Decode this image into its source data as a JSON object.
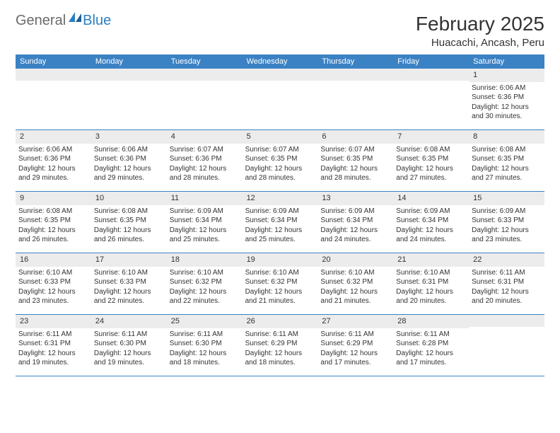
{
  "colors": {
    "header_bar": "#3b82c4",
    "day_band": "#ececec",
    "rule": "#3b82c4",
    "text": "#333333",
    "logo_gray": "#6a6a6a",
    "logo_blue": "#2a7fbf",
    "background": "#ffffff"
  },
  "logo": {
    "text_general": "General",
    "text_blue": "Blue"
  },
  "title": "February 2025",
  "location": "Huacachi, Ancash, Peru",
  "weekdays": [
    "Sunday",
    "Monday",
    "Tuesday",
    "Wednesday",
    "Thursday",
    "Friday",
    "Saturday"
  ],
  "weeks": [
    [
      {
        "day": "",
        "info": ""
      },
      {
        "day": "",
        "info": ""
      },
      {
        "day": "",
        "info": ""
      },
      {
        "day": "",
        "info": ""
      },
      {
        "day": "",
        "info": ""
      },
      {
        "day": "",
        "info": ""
      },
      {
        "day": "1",
        "info": "Sunrise: 6:06 AM\nSunset: 6:36 PM\nDaylight: 12 hours and 30 minutes."
      }
    ],
    [
      {
        "day": "2",
        "info": "Sunrise: 6:06 AM\nSunset: 6:36 PM\nDaylight: 12 hours and 29 minutes."
      },
      {
        "day": "3",
        "info": "Sunrise: 6:06 AM\nSunset: 6:36 PM\nDaylight: 12 hours and 29 minutes."
      },
      {
        "day": "4",
        "info": "Sunrise: 6:07 AM\nSunset: 6:36 PM\nDaylight: 12 hours and 28 minutes."
      },
      {
        "day": "5",
        "info": "Sunrise: 6:07 AM\nSunset: 6:35 PM\nDaylight: 12 hours and 28 minutes."
      },
      {
        "day": "6",
        "info": "Sunrise: 6:07 AM\nSunset: 6:35 PM\nDaylight: 12 hours and 28 minutes."
      },
      {
        "day": "7",
        "info": "Sunrise: 6:08 AM\nSunset: 6:35 PM\nDaylight: 12 hours and 27 minutes."
      },
      {
        "day": "8",
        "info": "Sunrise: 6:08 AM\nSunset: 6:35 PM\nDaylight: 12 hours and 27 minutes."
      }
    ],
    [
      {
        "day": "9",
        "info": "Sunrise: 6:08 AM\nSunset: 6:35 PM\nDaylight: 12 hours and 26 minutes."
      },
      {
        "day": "10",
        "info": "Sunrise: 6:08 AM\nSunset: 6:35 PM\nDaylight: 12 hours and 26 minutes."
      },
      {
        "day": "11",
        "info": "Sunrise: 6:09 AM\nSunset: 6:34 PM\nDaylight: 12 hours and 25 minutes."
      },
      {
        "day": "12",
        "info": "Sunrise: 6:09 AM\nSunset: 6:34 PM\nDaylight: 12 hours and 25 minutes."
      },
      {
        "day": "13",
        "info": "Sunrise: 6:09 AM\nSunset: 6:34 PM\nDaylight: 12 hours and 24 minutes."
      },
      {
        "day": "14",
        "info": "Sunrise: 6:09 AM\nSunset: 6:34 PM\nDaylight: 12 hours and 24 minutes."
      },
      {
        "day": "15",
        "info": "Sunrise: 6:09 AM\nSunset: 6:33 PM\nDaylight: 12 hours and 23 minutes."
      }
    ],
    [
      {
        "day": "16",
        "info": "Sunrise: 6:10 AM\nSunset: 6:33 PM\nDaylight: 12 hours and 23 minutes."
      },
      {
        "day": "17",
        "info": "Sunrise: 6:10 AM\nSunset: 6:33 PM\nDaylight: 12 hours and 22 minutes."
      },
      {
        "day": "18",
        "info": "Sunrise: 6:10 AM\nSunset: 6:32 PM\nDaylight: 12 hours and 22 minutes."
      },
      {
        "day": "19",
        "info": "Sunrise: 6:10 AM\nSunset: 6:32 PM\nDaylight: 12 hours and 21 minutes."
      },
      {
        "day": "20",
        "info": "Sunrise: 6:10 AM\nSunset: 6:32 PM\nDaylight: 12 hours and 21 minutes."
      },
      {
        "day": "21",
        "info": "Sunrise: 6:10 AM\nSunset: 6:31 PM\nDaylight: 12 hours and 20 minutes."
      },
      {
        "day": "22",
        "info": "Sunrise: 6:11 AM\nSunset: 6:31 PM\nDaylight: 12 hours and 20 minutes."
      }
    ],
    [
      {
        "day": "23",
        "info": "Sunrise: 6:11 AM\nSunset: 6:31 PM\nDaylight: 12 hours and 19 minutes."
      },
      {
        "day": "24",
        "info": "Sunrise: 6:11 AM\nSunset: 6:30 PM\nDaylight: 12 hours and 19 minutes."
      },
      {
        "day": "25",
        "info": "Sunrise: 6:11 AM\nSunset: 6:30 PM\nDaylight: 12 hours and 18 minutes."
      },
      {
        "day": "26",
        "info": "Sunrise: 6:11 AM\nSunset: 6:29 PM\nDaylight: 12 hours and 18 minutes."
      },
      {
        "day": "27",
        "info": "Sunrise: 6:11 AM\nSunset: 6:29 PM\nDaylight: 12 hours and 17 minutes."
      },
      {
        "day": "28",
        "info": "Sunrise: 6:11 AM\nSunset: 6:28 PM\nDaylight: 12 hours and 17 minutes."
      },
      {
        "day": "",
        "info": ""
      }
    ]
  ]
}
